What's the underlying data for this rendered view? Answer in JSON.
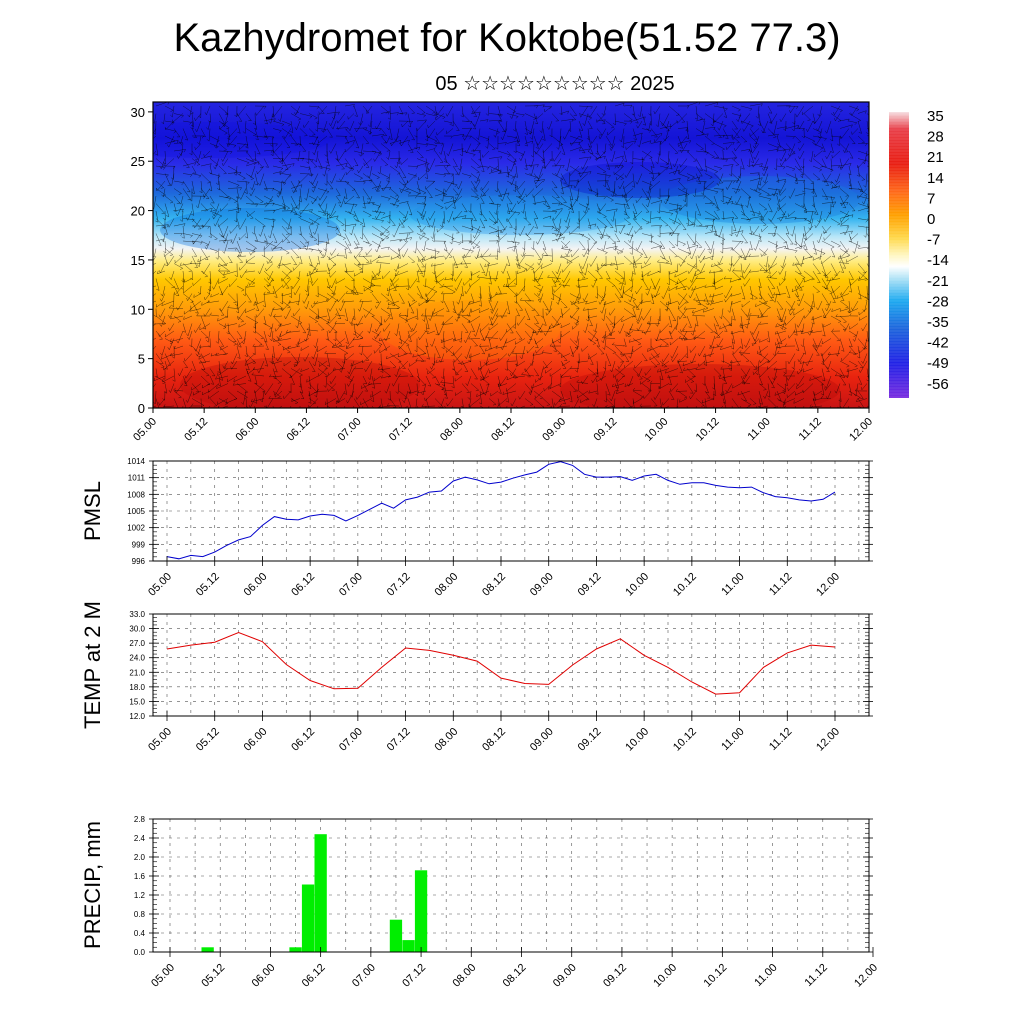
{
  "title": "Kazhydromet for Koktobe(51.52 77.3)",
  "subtitle": "05 ☆☆☆☆☆☆☆☆☆ 2025",
  "chart_data": [
    {
      "type": "heatmap",
      "title": "Kazhydromet for Koktobe(51.52 77.3)",
      "subtitle": "05 ☆☆☆☆☆☆☆☆☆ 2025",
      "x_tick_labels": [
        "05.00",
        "05.12",
        "06.00",
        "06.12",
        "07.00",
        "07.12",
        "08.00",
        "08.12",
        "09.00",
        "09.12",
        "10.00",
        "10.12",
        "11.00",
        "11.12",
        "12.00"
      ],
      "y_tick_labels": [
        "0",
        "5",
        "10",
        "15",
        "20",
        "25",
        "30"
      ],
      "ylim": [
        0,
        31
      ],
      "colorbar_labels": [
        "35",
        "28",
        "21",
        "14",
        "7",
        "0",
        "-7",
        "-14",
        "-21",
        "-28",
        "-35",
        "-42",
        "-49",
        "-56"
      ],
      "colorbar_colors": [
        "#f4d9dc",
        "#e8303a",
        "#ff6a1f",
        "#ffb000",
        "#ffe870",
        "#ffffff",
        "#8fd6f5",
        "#1eb0f0",
        "#1e64dc",
        "#2020e6",
        "#7a2ee0"
      ],
      "wind_barbs": true
    },
    {
      "type": "line",
      "ylabel": "PMSL",
      "x_tick_labels": [
        "05.00",
        "05.12",
        "06.00",
        "06.12",
        "07.00",
        "07.12",
        "08.00",
        "08.12",
        "09.00",
        "09.12",
        "10.00",
        "10.12",
        "11.00",
        "11.12",
        "12.00"
      ],
      "y_tick_labels": [
        "996",
        "999",
        "1002",
        "1005",
        "1008",
        "1011",
        "1014"
      ],
      "ylim": [
        996,
        1014
      ],
      "color": "#0000cc",
      "grid": true,
      "x": [
        0,
        1,
        2,
        3,
        4,
        5,
        6,
        7,
        8,
        9,
        10,
        11,
        12,
        13,
        14,
        15,
        16,
        17,
        18,
        19,
        20,
        21,
        22,
        23,
        24,
        25,
        26,
        27,
        28
      ],
      "values": [
        996.8,
        996.4,
        997.0,
        996.8,
        997.6,
        998.8,
        999.8,
        1000.4,
        1002.4,
        1004.0,
        1003.5,
        1003.4,
        1004.1,
        1004.4,
        1004.2,
        1003.2,
        1004.2,
        1005.3,
        1006.4,
        1005.5,
        1007.0,
        1007.5,
        1008.4,
        1008.6,
        1010.4,
        1011.1,
        1010.6,
        1009.9,
        1010.2
      ],
      "x_ext": [
        29,
        30,
        31,
        32,
        33,
        34,
        35,
        36,
        37,
        38,
        39,
        40,
        41,
        42,
        43,
        44,
        45,
        46,
        47,
        48,
        49,
        50,
        51,
        52,
        53,
        54,
        55,
        56
      ],
      "values_ext": [
        1010.9,
        1011.5,
        1012.0,
        1013.4,
        1013.9,
        1013.2,
        1011.6,
        1011.1,
        1011.1,
        1011.2,
        1010.5,
        1011.3,
        1011.6,
        1010.5,
        1009.8,
        1010.1,
        1010.1,
        1009.6,
        1009.3,
        1009.2,
        1009.3,
        1008.3,
        1007.6,
        1007.4,
        1007.0,
        1006.8,
        1007.1,
        1008.4
      ]
    },
    {
      "type": "line",
      "ylabel": "TEMP at 2 M",
      "x_tick_labels": [
        "05.00",
        "05.12",
        "06.00",
        "06.12",
        "07.00",
        "07.12",
        "08.00",
        "08.12",
        "09.00",
        "09.12",
        "10.00",
        "10.12",
        "11.00",
        "11.12",
        "12.00"
      ],
      "y_tick_labels": [
        "12.0",
        "15.0",
        "18.0",
        "21.0",
        "24.0",
        "27.0",
        "30.0",
        "33.0"
      ],
      "ylim": [
        12,
        33
      ],
      "color": "#e00000",
      "grid": true,
      "x": [
        0,
        2,
        4,
        6,
        8,
        10,
        12,
        14,
        16,
        18,
        20,
        22,
        24,
        26,
        28,
        30,
        32,
        34,
        36,
        38,
        40,
        42,
        44,
        46,
        48,
        50,
        52,
        54,
        56
      ],
      "values": [
        25.8,
        26.6,
        27.2,
        29.2,
        27.3,
        22.6,
        19.3,
        17.6,
        17.7,
        22.0,
        26.0,
        25.5,
        24.5,
        23.3,
        19.8,
        18.7,
        18.5,
        22.5,
        25.8,
        27.9,
        24.5,
        22.0,
        19.0,
        16.5,
        16.8,
        22.0,
        25.0,
        26.6,
        26.2
      ]
    },
    {
      "type": "bar",
      "ylabel": "PRECIP, mm",
      "x_tick_labels": [
        "05.00",
        "05.12",
        "06.00",
        "06.12",
        "07.00",
        "07.12",
        "08.00",
        "08.12",
        "09.00",
        "09.12",
        "10.00",
        "10.12",
        "11.00",
        "11.12",
        "12.00"
      ],
      "y_tick_labels": [
        "0.0",
        "0.4",
        "0.8",
        "1.2",
        "1.6",
        "2.0",
        "2.4",
        "2.8"
      ],
      "ylim": [
        0,
        2.8
      ],
      "color": "#00ee00",
      "grid": true,
      "x": [
        0,
        1,
        2,
        3,
        4,
        5,
        6,
        7,
        8,
        9,
        10,
        11,
        12,
        13,
        14,
        15,
        16,
        17,
        18,
        19,
        20,
        21,
        22,
        23,
        24,
        25,
        26,
        27,
        28,
        29,
        30,
        31,
        32,
        33,
        34,
        35,
        36,
        37,
        38,
        39,
        40,
        41,
        42,
        43,
        44,
        45,
        46,
        47,
        48,
        49,
        50,
        51,
        52,
        53,
        54,
        55,
        56
      ],
      "values": [
        0.01,
        0,
        0,
        0.1,
        0,
        0,
        0,
        0,
        0,
        0,
        0.1,
        1.42,
        2.48,
        0,
        0,
        0,
        0,
        0,
        0.68,
        0.25,
        1.72,
        0,
        0,
        0,
        0,
        0,
        0,
        0,
        0,
        0,
        0,
        0,
        0,
        0,
        0,
        0,
        0,
        0,
        0,
        0,
        0,
        0,
        0,
        0,
        0,
        0,
        0,
        0,
        0,
        0,
        0,
        0,
        0,
        0,
        0,
        0,
        0
      ]
    }
  ]
}
